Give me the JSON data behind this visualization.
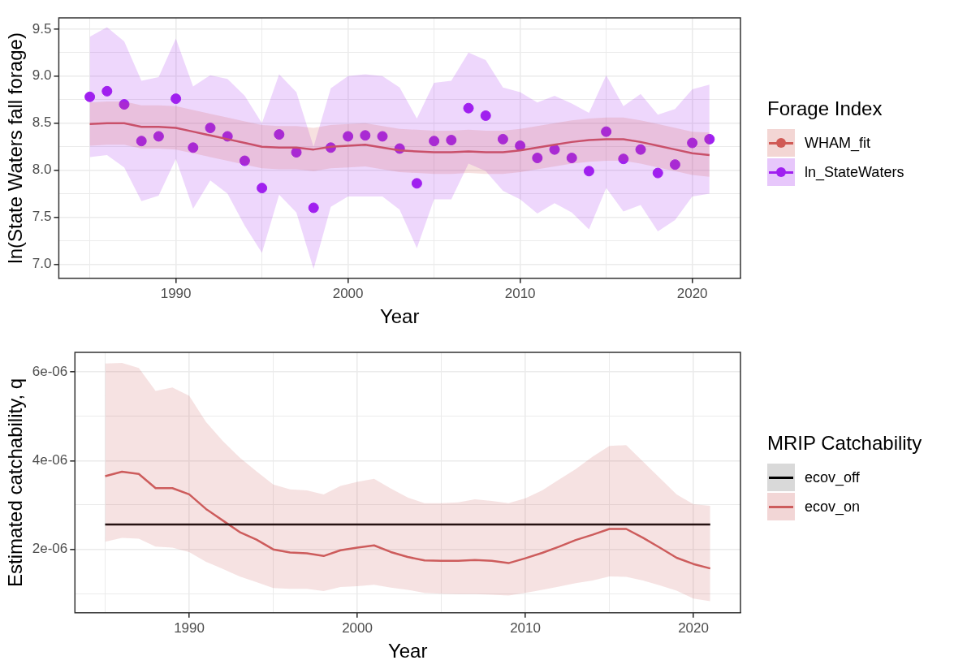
{
  "chart_data": [
    {
      "type": "line",
      "xlabel": "Year",
      "ylabel": "ln(State Waters fall forage)",
      "legend_title": "Forage Index",
      "legend": "right",
      "grid": true,
      "x": [
        1985,
        1986,
        1987,
        1988,
        1989,
        1990,
        1991,
        1992,
        1993,
        1994,
        1995,
        1996,
        1997,
        1998,
        1999,
        2000,
        2001,
        2002,
        2003,
        2004,
        2005,
        2006,
        2007,
        2008,
        2009,
        2010,
        2011,
        2012,
        2013,
        2014,
        2015,
        2016,
        2017,
        2018,
        2019,
        2020,
        2021
      ],
      "xlim": [
        1983.2,
        2022.8
      ],
      "ylim": [
        6.85,
        9.62
      ],
      "xticks": [
        {
          "value": 1985,
          "label": null
        },
        1990,
        {
          "value": 1995,
          "label": null
        },
        2000,
        {
          "value": 2005,
          "label": null
        },
        2010,
        {
          "value": 2015,
          "label": null
        },
        2020
      ],
      "yticks": [
        {
          "value": 7,
          "label": "7.0"
        },
        {
          "value": 7.25,
          "label": null
        },
        {
          "value": 7.5,
          "label": "7.5"
        },
        {
          "value": 7.75,
          "label": null
        },
        {
          "value": 8,
          "label": "8.0"
        },
        {
          "value": 8.25,
          "label": null
        },
        {
          "value": 8.5,
          "label": "8.5"
        },
        {
          "value": 8.75,
          "label": null
        },
        {
          "value": 9,
          "label": "9.0"
        },
        {
          "value": 9.25,
          "label": null
        },
        {
          "value": 9.5,
          "label": "9.5"
        }
      ],
      "series": [
        {
          "name": "WHAM_fit",
          "type": "line",
          "color": "#d05a55",
          "values": [
            8.49,
            8.5,
            8.5,
            8.46,
            8.46,
            8.45,
            8.41,
            8.37,
            8.33,
            8.29,
            8.25,
            8.24,
            8.24,
            8.22,
            8.25,
            8.26,
            8.27,
            8.24,
            8.21,
            8.2,
            8.19,
            8.19,
            8.2,
            8.19,
            8.19,
            8.21,
            8.24,
            8.27,
            8.3,
            8.32,
            8.33,
            8.33,
            8.3,
            8.26,
            8.22,
            8.18,
            8.16
          ],
          "upper": [
            8.72,
            8.73,
            8.73,
            8.69,
            8.69,
            8.68,
            8.64,
            8.6,
            8.56,
            8.52,
            8.48,
            8.47,
            8.47,
            8.45,
            8.48,
            8.49,
            8.5,
            8.47,
            8.44,
            8.43,
            8.42,
            8.42,
            8.43,
            8.42,
            8.42,
            8.44,
            8.47,
            8.5,
            8.53,
            8.55,
            8.56,
            8.56,
            8.53,
            8.49,
            8.45,
            8.41,
            8.4
          ],
          "lower": [
            8.26,
            8.27,
            8.27,
            8.23,
            8.23,
            8.22,
            8.18,
            8.14,
            8.1,
            8.06,
            8.02,
            8.01,
            8.01,
            7.99,
            8.02,
            8.03,
            8.04,
            8.01,
            7.98,
            7.97,
            7.96,
            7.96,
            7.97,
            7.96,
            7.96,
            7.98,
            8.01,
            8.04,
            8.07,
            8.09,
            8.1,
            8.1,
            8.07,
            8.03,
            7.99,
            7.95,
            7.93
          ]
        },
        {
          "name": "ln_StateWaters",
          "type": "scatter",
          "marker": "circle",
          "color": "#a020f0",
          "values": [
            8.78,
            8.84,
            8.7,
            8.31,
            8.36,
            8.76,
            8.24,
            8.45,
            8.36,
            8.1,
            7.81,
            8.38,
            8.19,
            7.6,
            8.24,
            8.36,
            8.37,
            8.36,
            8.23,
            7.86,
            8.31,
            8.32,
            8.66,
            8.58,
            8.33,
            8.26,
            8.13,
            8.22,
            8.13,
            7.99,
            8.41,
            8.12,
            8.22,
            7.97,
            8.06,
            8.29,
            8.33
          ],
          "upper": [
            9.42,
            9.52,
            9.37,
            8.95,
            8.99,
            9.4,
            8.89,
            9.01,
            8.97,
            8.79,
            8.5,
            9.02,
            8.83,
            8.25,
            8.87,
            9.0,
            9.02,
            9.0,
            8.88,
            8.55,
            8.93,
            8.95,
            9.25,
            9.17,
            8.88,
            8.83,
            8.72,
            8.79,
            8.71,
            8.61,
            9.01,
            8.68,
            8.81,
            8.59,
            8.65,
            8.86,
            8.91
          ],
          "lower": [
            8.14,
            8.16,
            8.03,
            7.67,
            7.73,
            8.12,
            7.59,
            7.89,
            7.75,
            7.41,
            7.12,
            7.74,
            7.55,
            6.95,
            7.61,
            7.72,
            7.72,
            7.72,
            7.58,
            7.17,
            7.69,
            7.69,
            8.07,
            7.99,
            7.78,
            7.69,
            7.54,
            7.65,
            7.55,
            7.37,
            7.81,
            7.56,
            7.63,
            7.35,
            7.47,
            7.72,
            7.75
          ]
        }
      ]
    },
    {
      "type": "line",
      "xlabel": "Year",
      "ylabel": "Estimated catchability, q",
      "legend_title": "MRIP Catchability",
      "legend": "right",
      "grid": true,
      "x": [
        1985,
        1986,
        1987,
        1988,
        1989,
        1990,
        1991,
        1992,
        1993,
        1994,
        1995,
        1996,
        1997,
        1998,
        1999,
        2000,
        2001,
        2002,
        2003,
        2004,
        2005,
        2006,
        2007,
        2008,
        2009,
        2010,
        2011,
        2012,
        2013,
        2014,
        2015,
        2016,
        2017,
        2018,
        2019,
        2020,
        2021
      ],
      "xlim": [
        1983.2,
        2022.8
      ],
      "ylim": [
        5.7e-07,
        6.44e-06
      ],
      "xticks": [
        {
          "value": 1985,
          "label": null
        },
        1990,
        {
          "value": 1995,
          "label": null
        },
        2000,
        {
          "value": 2005,
          "label": null
        },
        2010,
        {
          "value": 2015,
          "label": null
        },
        2020
      ],
      "yticks": [
        {
          "value": 1e-06,
          "label": null
        },
        {
          "value": 2e-06,
          "label": "2e-06"
        },
        {
          "value": 3e-06,
          "label": null
        },
        {
          "value": 4e-06,
          "label": "4e-06"
        },
        {
          "value": 5e-06,
          "label": null
        },
        {
          "value": 6e-06,
          "label": "6e-06"
        }
      ],
      "series": [
        {
          "name": "ecov_off",
          "type": "line",
          "color": "#000000",
          "values": [
            2.56e-06,
            2.56e-06,
            2.56e-06,
            2.56e-06,
            2.56e-06,
            2.56e-06,
            2.56e-06,
            2.56e-06,
            2.56e-06,
            2.56e-06,
            2.56e-06,
            2.56e-06,
            2.56e-06,
            2.56e-06,
            2.56e-06,
            2.56e-06,
            2.56e-06,
            2.56e-06,
            2.56e-06,
            2.56e-06,
            2.56e-06,
            2.56e-06,
            2.56e-06,
            2.56e-06,
            2.56e-06,
            2.56e-06,
            2.56e-06,
            2.56e-06,
            2.56e-06,
            2.56e-06,
            2.56e-06,
            2.56e-06,
            2.56e-06,
            2.56e-06,
            2.56e-06,
            2.56e-06,
            2.56e-06
          ]
        },
        {
          "name": "ecov_on",
          "type": "line",
          "color": "#cd5c5c",
          "values": [
            3.65e-06,
            3.75e-06,
            3.7e-06,
            3.38e-06,
            3.38e-06,
            3.24e-06,
            2.91e-06,
            2.65e-06,
            2.39e-06,
            2.22e-06,
            2e-06,
            1.93e-06,
            1.91e-06,
            1.85e-06,
            1.98e-06,
            2.04e-06,
            2.09e-06,
            1.94e-06,
            1.83e-06,
            1.75e-06,
            1.74e-06,
            1.74e-06,
            1.76e-06,
            1.74e-06,
            1.69e-06,
            1.8e-06,
            1.92e-06,
            2.06e-06,
            2.21e-06,
            2.33e-06,
            2.46e-06,
            2.46e-06,
            2.26e-06,
            2.04e-06,
            1.81e-06,
            1.67e-06,
            1.57e-06
          ],
          "upper": [
            6.19e-06,
            6.2e-06,
            6.09e-06,
            5.57e-06,
            5.65e-06,
            5.46e-06,
            4.87e-06,
            4.44e-06,
            4.07e-06,
            3.76e-06,
            3.46e-06,
            3.35e-06,
            3.33e-06,
            3.24e-06,
            3.43e-06,
            3.52e-06,
            3.59e-06,
            3.37e-06,
            3.17e-06,
            3.04e-06,
            3.04e-06,
            3.06e-06,
            3.13e-06,
            3.09e-06,
            3.04e-06,
            3.15e-06,
            3.33e-06,
            3.57e-06,
            3.81e-06,
            4.09e-06,
            4.33e-06,
            4.35e-06,
            3.98e-06,
            3.61e-06,
            3.24e-06,
            3.02e-06,
            2.98e-06
          ],
          "lower": [
            2.17e-06,
            2.26e-06,
            2.24e-06,
            2.06e-06,
            2.04e-06,
            1.94e-06,
            1.72e-06,
            1.56e-06,
            1.39e-06,
            1.26e-06,
            1.13e-06,
            1.11e-06,
            1.11e-06,
            1.06e-06,
            1.15e-06,
            1.17e-06,
            1.2e-06,
            1.14e-06,
            1.09e-06,
            1.02e-06,
            1e-06,
            9.9e-07,
            9.9e-07,
            9.8e-07,
            9.6e-07,
            1.02e-06,
            1.09e-06,
            1.16e-06,
            1.24e-06,
            1.3e-06,
            1.39e-06,
            1.38e-06,
            1.3e-06,
            1.19e-06,
            1.07e-06,
            8.9e-07,
            8.3e-07
          ]
        }
      ]
    }
  ]
}
